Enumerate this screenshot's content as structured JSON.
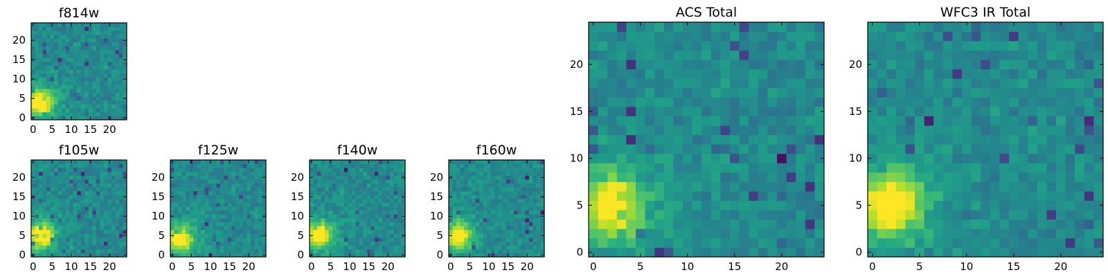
{
  "chart_data": [
    {
      "id": "f814w",
      "type": "heatmap",
      "title": "f814w",
      "grid_size": 25,
      "xlim": [
        0,
        25
      ],
      "ylim": [
        0,
        25
      ],
      "xticks": [
        0,
        5,
        10,
        15,
        20
      ],
      "yticks": [
        0,
        5,
        10,
        15,
        20
      ],
      "source": {
        "x": 2,
        "y": 4
      },
      "colormap": "viridis",
      "seed": 11
    },
    {
      "id": "f105w",
      "type": "heatmap",
      "title": "f105w",
      "grid_size": 25,
      "xlim": [
        0,
        25
      ],
      "ylim": [
        0,
        25
      ],
      "xticks": [
        0,
        5,
        10,
        15,
        20
      ],
      "yticks": [
        0,
        5,
        10,
        15,
        20
      ],
      "source": {
        "x": 2,
        "y": 5
      },
      "colormap": "viridis",
      "seed": 23
    },
    {
      "id": "f125w",
      "type": "heatmap",
      "title": "f125w",
      "grid_size": 25,
      "xlim": [
        0,
        25
      ],
      "ylim": [
        0,
        25
      ],
      "xticks": [
        0,
        5,
        10,
        15,
        20
      ],
      "yticks": [
        0,
        5,
        10,
        15,
        20
      ],
      "source": {
        "x": 2,
        "y": 4
      },
      "colormap": "viridis",
      "seed": 37
    },
    {
      "id": "f140w",
      "type": "heatmap",
      "title": "f140w",
      "grid_size": 25,
      "xlim": [
        0,
        25
      ],
      "ylim": [
        0,
        25
      ],
      "xticks": [
        0,
        5,
        10,
        15,
        20
      ],
      "yticks": [
        0,
        5,
        10,
        15,
        20
      ],
      "source": {
        "x": 2,
        "y": 5
      },
      "colormap": "viridis",
      "seed": 41
    },
    {
      "id": "f160w",
      "type": "heatmap",
      "title": "f160w",
      "grid_size": 25,
      "xlim": [
        0,
        25
      ],
      "ylim": [
        0,
        25
      ],
      "xticks": [
        0,
        5,
        10,
        15,
        20
      ],
      "yticks": [
        0,
        5,
        10,
        15,
        20
      ],
      "source": {
        "x": 2,
        "y": 5
      },
      "colormap": "viridis",
      "seed": 53
    },
    {
      "id": "acs-total",
      "type": "heatmap",
      "title": "ACS Total",
      "grid_size": 25,
      "xlim": [
        0,
        25
      ],
      "ylim": [
        0,
        25
      ],
      "xticks": [
        0,
        5,
        10,
        15,
        20
      ],
      "yticks": [
        0,
        5,
        10,
        15,
        20
      ],
      "source": {
        "x": 2,
        "y": 5
      },
      "colormap": "viridis",
      "seed": 67
    },
    {
      "id": "wfc3-ir-total",
      "type": "heatmap",
      "title": "WFC3 IR Total",
      "grid_size": 25,
      "xlim": [
        0,
        25
      ],
      "ylim": [
        0,
        25
      ],
      "xticks": [
        0,
        5,
        10,
        15,
        20
      ],
      "yticks": [
        0,
        5,
        10,
        15,
        20
      ],
      "source": {
        "x": 2,
        "y": 5
      },
      "colormap": "viridis",
      "seed": 79
    }
  ]
}
